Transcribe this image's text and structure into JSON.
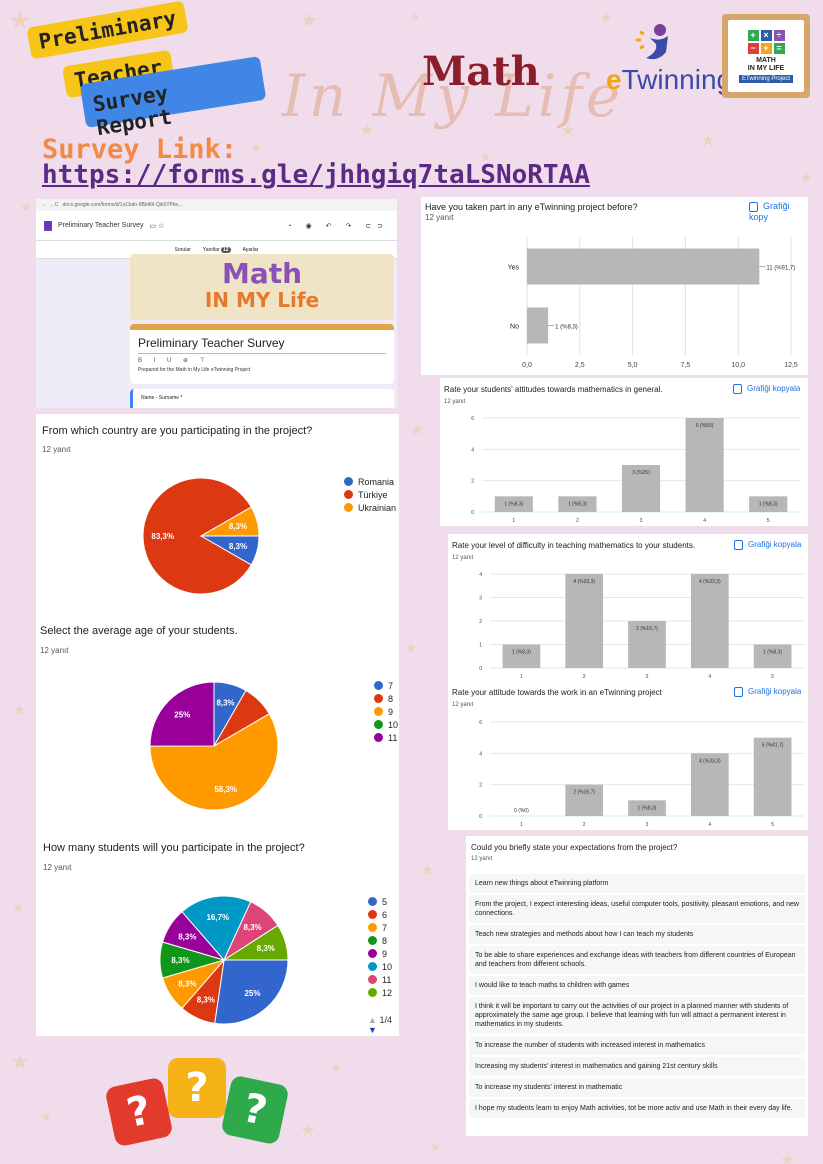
{
  "header": {
    "tag_line1": "Preliminary",
    "tag_line2": "Teacher",
    "tag_line3": "Survey Report",
    "brand_script": "In My Life",
    "brand_math": "Math",
    "etwinning_e": "e",
    "etwinning_rest": "Twinning",
    "logo_line1": "MATH",
    "logo_line2": "IN MY LIFE",
    "logo_line3": "ETwinning Project",
    "survey_label": "Survey Link:",
    "survey_url": "https://forms.gle/jhhgiq7taLSNoRTAA"
  },
  "forms_screenshot": {
    "url": "docs.google.com/forms/d/1uCkdo-9BbiKil-Qik5YPke...",
    "doc_title": "Preliminary Teacher Survey",
    "tab_questions": "Sorular",
    "tab_answers": "Yanıtlar",
    "tab_answers_count": "12",
    "tab_settings": "Ayarlar",
    "banner_line1": "Math",
    "banner_line2": "IN MY Life",
    "form_title": "Preliminary Teacher Survey",
    "format_bar": "B I U ⊕ ⊤",
    "form_description": "Prepared for the Math in My Life eTwinning Project",
    "name_field": "Name - Surname *"
  },
  "copy_label": "Grafiği kopyala",
  "copy_label_cut": "Grafiği kopy",
  "chart_data": [
    {
      "id": "etwinning_before",
      "type": "bar",
      "orientation": "horizontal",
      "title": "Have you taken part in any eTwinning project before?",
      "responses": "12 yanıt",
      "categories": [
        "Yes",
        "No"
      ],
      "values": [
        11,
        1
      ],
      "value_labels": [
        "11 (%91,7)",
        "1 (%8,3)"
      ],
      "xticks": [
        "0,0",
        "2,5",
        "5,0",
        "7,5",
        "10,0",
        "12,5"
      ],
      "xlim": [
        0,
        12.5
      ],
      "color": "#b7b7b7"
    },
    {
      "id": "country",
      "type": "pie",
      "title": "From which country are you participating in the project?",
      "responses": "12 yanıt",
      "labels": [
        "Romania",
        "Türkiye",
        "Ukrainian"
      ],
      "values": [
        8.3,
        83.3,
        8.3
      ],
      "slice_labels": [
        "8,3%",
        "83,3%",
        "8,3%"
      ],
      "colors": [
        "#3366cc",
        "#dc3912",
        "#ff9900"
      ]
    },
    {
      "id": "attitudes",
      "type": "bar",
      "title": "Rate your students' attitudes towards mathematics in general.",
      "responses": "12 yanıt",
      "categories": [
        "1",
        "2",
        "3",
        "4",
        "5"
      ],
      "values": [
        1,
        1,
        3,
        6,
        1
      ],
      "value_labels": [
        "1 (%8,3)",
        "1 (%8,3)",
        "3 (%25)",
        "6 (%50)",
        "1 (%8,3)"
      ],
      "yticks": [
        "0",
        "2",
        "4",
        "6"
      ],
      "ylim": [
        0,
        6
      ],
      "color": "#b7b7b7"
    },
    {
      "id": "age",
      "type": "pie",
      "title": "Select the average age of your students.",
      "responses": "12 yanıt",
      "labels": [
        "7",
        "8",
        "9",
        "10",
        "11"
      ],
      "values": [
        8.3,
        8.3,
        58.3,
        0,
        25
      ],
      "slice_labels": [
        "8,3%",
        "",
        "58,3%",
        "",
        "25%"
      ],
      "colors": [
        "#3366cc",
        "#dc3912",
        "#ff9900",
        "#109618",
        "#990099"
      ]
    },
    {
      "id": "difficulty",
      "type": "bar",
      "title": "Rate your level of difficulty in teaching mathematics to your students.",
      "responses": "12 yanıt",
      "categories": [
        "1",
        "2",
        "3",
        "4",
        "5"
      ],
      "values": [
        1,
        4,
        2,
        4,
        1
      ],
      "value_labels": [
        "1 (%8,3)",
        "4 (%33,3)",
        "2 (%16,7)",
        "4 (%33,3)",
        "1 (%8,3)"
      ],
      "yticks": [
        "0",
        "1",
        "2",
        "3",
        "4"
      ],
      "ylim": [
        0,
        4
      ],
      "color": "#b7b7b7"
    },
    {
      "id": "etwinning_attitude",
      "type": "bar",
      "title": "Rate your attitude towards the work in an eTwinning project",
      "responses": "12 yanıt",
      "categories": [
        "1",
        "2",
        "3",
        "4",
        "5"
      ],
      "values": [
        0,
        2,
        1,
        4,
        5
      ],
      "value_labels": [
        "0 (%0)",
        "2 (%16,7)",
        "1 (%8,3)",
        "4 (%33,3)",
        "5 (%41,7)"
      ],
      "yticks": [
        "0",
        "2",
        "4",
        "6"
      ],
      "ylim": [
        0,
        6
      ],
      "color": "#b7b7b7"
    },
    {
      "id": "students_count",
      "type": "pie",
      "title": "How many students will you participate in the project?",
      "responses": "12 yanıt",
      "labels": [
        "5",
        "6",
        "7",
        "8",
        "9",
        "10",
        "11",
        "12"
      ],
      "values": [
        25,
        8.3,
        8.3,
        8.3,
        8.3,
        16.7,
        8.3,
        8.3
      ],
      "slice_labels": [
        "25%",
        "8,3%",
        "8,3%",
        "8,3%",
        "8,3%",
        "16,7%",
        "8,3%",
        "8,3%"
      ],
      "colors": [
        "#3366cc",
        "#dc3912",
        "#ff9900",
        "#109618",
        "#990099",
        "#0099c6",
        "#dd4477",
        "#66aa00"
      ],
      "pager": "1/4"
    }
  ],
  "expectations": {
    "title": "Could you briefly state your expectations from the project?",
    "responses": "12 yanıt",
    "items": [
      "Learn new things about eTwinning platform",
      "From the project, I expect interesting ideas, useful computer tools, positivity, pleasant emotions, and new connections.",
      "Teach new strategies and methods about how I can teach my students",
      "To be able to share experiences and exchange ideas with teachers from different countries of European and teachers from different schools.",
      "I would like to teach maths to children with games",
      "I think it will be important to carry out the activities of our project in a planned manner with students of approximately the same age group. I believe that learning with fun will attract a permanent interest in mathematics in my students.",
      "To increase the number of students with increased interest in mathematics",
      "Increasing my students' interest in mathematics and gaining 21st century skills",
      "To increase my students' interest in mathematic",
      "I hope my students learn to enjoy Math activities, tot be more activ and use Math in their every day life."
    ]
  }
}
